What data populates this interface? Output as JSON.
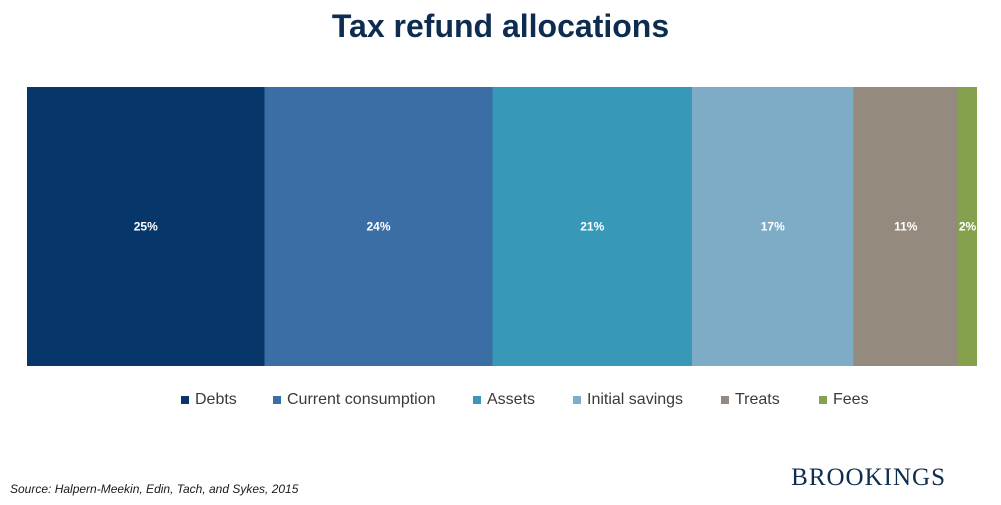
{
  "chart_data": {
    "type": "bar",
    "title": "Tax refund allocations",
    "orientation": "horizontal-stacked-100",
    "series": [
      {
        "name": "Debts",
        "value": 25,
        "label": "25%",
        "color": "#07376a"
      },
      {
        "name": "Current consumption",
        "value": 24,
        "label": "24%",
        "color": "#3a6ea5"
      },
      {
        "name": "Assets",
        "value": 21,
        "label": "21%",
        "color": "#3898b8"
      },
      {
        "name": "Initial savings",
        "value": 17,
        "label": "17%",
        "color": "#7eabc5"
      },
      {
        "name": "Treats",
        "value": 11,
        "label": "11%",
        "color": "#948b7e"
      },
      {
        "name": "Fees",
        "value": 2,
        "label": "2%",
        "color": "#85a14e"
      }
    ],
    "legend": "bottom"
  },
  "source": "Source: Halpern-Meekin, Edin, Tach, and Sykes, 2015",
  "brand": "BROOKINGS"
}
